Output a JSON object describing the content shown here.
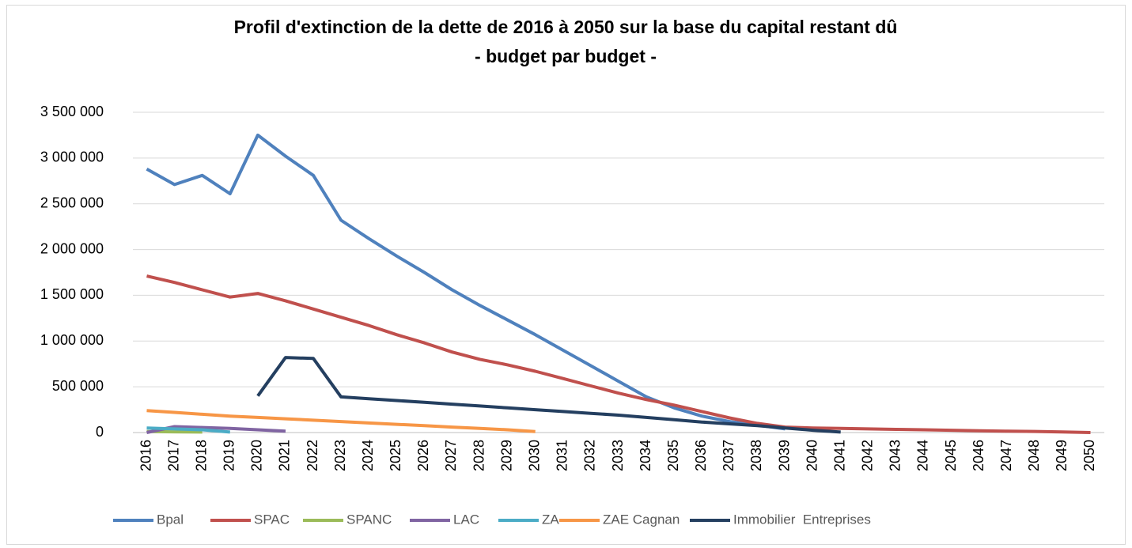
{
  "chart_data": {
    "type": "line",
    "title": "Profil d'extinction de la dette de 2016 à 2050 sur la base du capital restant dû",
    "subtitle": "- budget par budget -",
    "categories": [
      "2016",
      "2017",
      "2018",
      "2019",
      "2020",
      "2021",
      "2022",
      "2023",
      "2024",
      "2025",
      "2026",
      "2027",
      "2028",
      "2029",
      "2030",
      "2031",
      "2032",
      "2033",
      "2034",
      "2035",
      "2036",
      "2037",
      "2038",
      "2039",
      "2040",
      "2041",
      "2042",
      "2043",
      "2044",
      "2045",
      "2046",
      "2047",
      "2048",
      "2049",
      "2050"
    ],
    "ylim": [
      0,
      3500000
    ],
    "yticks": [
      0,
      {
        "value": 500000,
        "label": "500 000"
      },
      {
        "value": 1000000,
        "label": "1 000 000"
      },
      {
        "value": 1500000,
        "label": "1 500 000"
      },
      {
        "value": 2000000,
        "label": "2 000 000"
      },
      {
        "value": 2500000,
        "label": "2 500 000"
      },
      {
        "value": 3000000,
        "label": "3 000 000"
      },
      {
        "value": 3500000,
        "label": "3 500 000"
      }
    ],
    "grid": true,
    "legend": "bottom",
    "series": [
      {
        "name": "Bpal",
        "color": "#4f81bd",
        "values": [
          2880000,
          2710000,
          2810000,
          2610000,
          3250000,
          3020000,
          2810000,
          2320000,
          2120000,
          1930000,
          1750000,
          1560000,
          1390000,
          1230000,
          1070000,
          900000,
          730000,
          560000,
          390000,
          270000,
          180000,
          120000,
          80000,
          40000,
          null,
          null,
          null,
          null,
          null,
          null,
          null,
          null,
          null,
          null,
          null
        ]
      },
      {
        "name": "SPAC",
        "color": "#c0504d",
        "values": [
          1710000,
          1640000,
          1560000,
          1480000,
          1520000,
          1440000,
          1350000,
          1260000,
          1170000,
          1070000,
          980000,
          880000,
          800000,
          740000,
          670000,
          590000,
          510000,
          430000,
          360000,
          300000,
          230000,
          160000,
          100000,
          60000,
          50000,
          45000,
          40000,
          35000,
          30000,
          25000,
          20000,
          15000,
          12000,
          6000,
          0
        ]
      },
      {
        "name": "SPANC",
        "color": "#9bbb59",
        "values": [
          10000,
          8000,
          5000,
          null,
          null,
          null,
          null,
          null,
          null,
          null,
          null,
          null,
          null,
          null,
          null,
          null,
          null,
          null,
          null,
          null,
          null,
          null,
          null,
          null,
          null,
          null,
          null,
          null,
          null,
          null,
          null,
          null,
          null,
          null,
          null
        ]
      },
      {
        "name": "LAC",
        "color": "#8064a2",
        "values": [
          0,
          65000,
          55000,
          45000,
          30000,
          15000,
          null,
          null,
          null,
          null,
          null,
          null,
          null,
          null,
          null,
          null,
          null,
          null,
          null,
          null,
          null,
          null,
          null,
          null,
          null,
          null,
          null,
          null,
          null,
          null,
          null,
          null,
          null,
          null,
          null
        ]
      },
      {
        "name": "ZA",
        "color": "#4bacc6",
        "values": [
          50000,
          40000,
          30000,
          5000,
          null,
          null,
          null,
          null,
          null,
          null,
          null,
          null,
          null,
          null,
          null,
          null,
          null,
          null,
          null,
          null,
          null,
          null,
          null,
          null,
          null,
          null,
          null,
          null,
          null,
          null,
          null,
          null,
          null,
          null,
          null
        ]
      },
      {
        "name": "ZAE Cagnan",
        "color": "#f79646",
        "values": [
          240000,
          220000,
          200000,
          180000,
          165000,
          150000,
          135000,
          120000,
          105000,
          90000,
          75000,
          60000,
          45000,
          30000,
          10000,
          null,
          null,
          null,
          null,
          null,
          null,
          null,
          null,
          null,
          null,
          null,
          null,
          null,
          null,
          null,
          null,
          null,
          null,
          null,
          null
        ]
      },
      {
        "name": "Immobilier  Entreprises",
        "color": "#243f60",
        "values": [
          null,
          null,
          null,
          null,
          400000,
          820000,
          810000,
          390000,
          370000,
          350000,
          330000,
          310000,
          290000,
          270000,
          250000,
          230000,
          210000,
          190000,
          165000,
          140000,
          115000,
          95000,
          75000,
          50000,
          25000,
          5000,
          null,
          null,
          null,
          null,
          null,
          null,
          null,
          null,
          null
        ]
      }
    ]
  }
}
